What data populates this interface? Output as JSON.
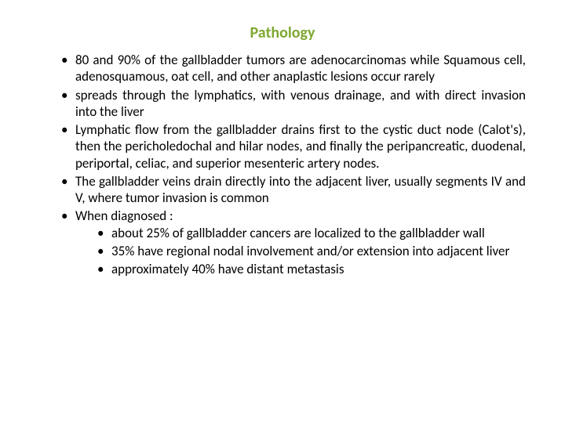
{
  "title": {
    "text": "Pathology",
    "color": "#7fa830",
    "fontsize": 20
  },
  "body": {
    "color": "#000000",
    "fontsize": 17,
    "lineheight": 1.25
  },
  "bullets": [
    "80 and 90% of the gallbladder tumors are adenocarcinomas while Squamous cell, adenosquamous, oat cell, and other anaplastic lesions occur rarely",
    "spreads through the lymphatics, with venous drainage, and with direct invasion into the liver",
    "Lymphatic flow from the gallbladder drains first to the cystic duct node (Calot's), then the pericholedochal and hilar nodes, and finally the peripancreatic, duodenal, periportal, celiac, and superior mesenteric artery nodes.",
    "The gallbladder veins drain directly into the adjacent liver, usually segments IV and V, where tumor invasion is common",
    "When diagnosed :"
  ],
  "subbullets": [
    "about 25% of gallbladder cancers are localized to the gallbladder wall",
    "35% have regional nodal involvement and/or extension into adjacent liver",
    "approximately 40% have distant metastasis"
  ]
}
